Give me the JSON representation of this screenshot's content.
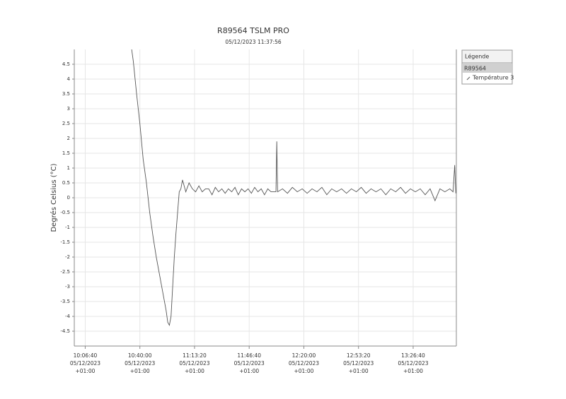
{
  "chart_data": {
    "type": "line",
    "title": "R89564 TSLM PRO",
    "subtitle": "05/12/2023 11:37:56",
    "y_label": "Degrés Celsius (°C)",
    "legend": {
      "title": "Légende",
      "group": "R89564",
      "position": "right"
    },
    "grid": true,
    "ylim": [
      -5,
      5
    ],
    "yticks": [
      -4.5,
      -4,
      -3.5,
      -3,
      -2.5,
      -2,
      -1.5,
      -1,
      -0.5,
      0,
      0.5,
      1,
      1.5,
      2,
      2.5,
      3,
      3.5,
      4,
      4.5
    ],
    "xlim": [
      "2023-12-05T10:00:00+01:00",
      "2023-12-05T13:53:00+01:00"
    ],
    "xticks": [
      {
        "value": "2023-12-05T10:06:40+01:00",
        "label": [
          "10:06:40",
          "05/12/2023",
          "+01:00"
        ]
      },
      {
        "value": "2023-12-05T10:40:00+01:00",
        "label": [
          "10:40:00",
          "05/12/2023",
          "+01:00"
        ]
      },
      {
        "value": "2023-12-05T11:13:20+01:00",
        "label": [
          "11:13:20",
          "05/12/2023",
          "+01:00"
        ]
      },
      {
        "value": "2023-12-05T11:46:40+01:00",
        "label": [
          "11:46:40",
          "05/12/2023",
          "+01:00"
        ]
      },
      {
        "value": "2023-12-05T12:20:00+01:00",
        "label": [
          "12:20:00",
          "05/12/2023",
          "+01:00"
        ]
      },
      {
        "value": "2023-12-05T12:53:20+01:00",
        "label": [
          "12:53:20",
          "05/12/2023",
          "+01:00"
        ]
      },
      {
        "value": "2023-12-05T13:26:40+01:00",
        "label": [
          "13:26:40",
          "05/12/2023",
          "+01:00"
        ]
      }
    ],
    "x": [
      "2023-12-05T10:35:00+01:00",
      "2023-12-05T10:36:00+01:00",
      "2023-12-05T10:38:00+01:00",
      "2023-12-05T10:40:00+01:00",
      "2023-12-05T10:42:00+01:00",
      "2023-12-05T10:44:00+01:00",
      "2023-12-05T10:46:00+01:00",
      "2023-12-05T10:48:00+01:00",
      "2023-12-05T10:50:00+01:00",
      "2023-12-05T10:52:00+01:00",
      "2023-12-05T10:54:00+01:00",
      "2023-12-05T10:56:00+01:00",
      "2023-12-05T10:57:00+01:00",
      "2023-12-05T10:58:00+01:00",
      "2023-12-05T10:59:00+01:00",
      "2023-12-05T11:00:00+01:00",
      "2023-12-05T11:01:00+01:00",
      "2023-12-05T11:02:00+01:00",
      "2023-12-05T11:03:00+01:00",
      "2023-12-05T11:04:00+01:00",
      "2023-12-05T11:05:00+01:00",
      "2023-12-05T11:06:00+01:00",
      "2023-12-05T11:08:00+01:00",
      "2023-12-05T11:10:00+01:00",
      "2023-12-05T11:12:00+01:00",
      "2023-12-05T11:14:00+01:00",
      "2023-12-05T11:16:00+01:00",
      "2023-12-05T11:18:00+01:00",
      "2023-12-05T11:20:00+01:00",
      "2023-12-05T11:22:00+01:00",
      "2023-12-05T11:24:00+01:00",
      "2023-12-05T11:26:00+01:00",
      "2023-12-05T11:28:00+01:00",
      "2023-12-05T11:30:00+01:00",
      "2023-12-05T11:32:00+01:00",
      "2023-12-05T11:34:00+01:00",
      "2023-12-05T11:36:00+01:00",
      "2023-12-05T11:38:00+01:00",
      "2023-12-05T11:40:00+01:00",
      "2023-12-05T11:42:00+01:00",
      "2023-12-05T11:44:00+01:00",
      "2023-12-05T11:46:00+01:00",
      "2023-12-05T11:48:00+01:00",
      "2023-12-05T11:50:00+01:00",
      "2023-12-05T11:52:00+01:00",
      "2023-12-05T11:54:00+01:00",
      "2023-12-05T11:56:00+01:00",
      "2023-12-05T11:58:00+01:00",
      "2023-12-05T12:00:00+01:00",
      "2023-12-05T12:03:00+01:00",
      "2023-12-05T12:03:30+01:00",
      "2023-12-05T12:04:00+01:00",
      "2023-12-05T12:07:00+01:00",
      "2023-12-05T12:10:00+01:00",
      "2023-12-05T12:13:00+01:00",
      "2023-12-05T12:16:00+01:00",
      "2023-12-05T12:19:00+01:00",
      "2023-12-05T12:22:00+01:00",
      "2023-12-05T12:25:00+01:00",
      "2023-12-05T12:28:00+01:00",
      "2023-12-05T12:31:00+01:00",
      "2023-12-05T12:34:00+01:00",
      "2023-12-05T12:37:00+01:00",
      "2023-12-05T12:40:00+01:00",
      "2023-12-05T12:43:00+01:00",
      "2023-12-05T12:46:00+01:00",
      "2023-12-05T12:49:00+01:00",
      "2023-12-05T12:52:00+01:00",
      "2023-12-05T12:55:00+01:00",
      "2023-12-05T12:58:00+01:00",
      "2023-12-05T13:01:00+01:00",
      "2023-12-05T13:04:00+01:00",
      "2023-12-05T13:07:00+01:00",
      "2023-12-05T13:10:00+01:00",
      "2023-12-05T13:13:00+01:00",
      "2023-12-05T13:16:00+01:00",
      "2023-12-05T13:19:00+01:00",
      "2023-12-05T13:22:00+01:00",
      "2023-12-05T13:25:00+01:00",
      "2023-12-05T13:28:00+01:00",
      "2023-12-05T13:31:00+01:00",
      "2023-12-05T13:34:00+01:00",
      "2023-12-05T13:37:00+01:00",
      "2023-12-05T13:40:00+01:00",
      "2023-12-05T13:43:00+01:00",
      "2023-12-05T13:46:00+01:00",
      "2023-12-05T13:49:00+01:00",
      "2023-12-05T13:51:00+01:00",
      "2023-12-05T13:52:00+01:00",
      "2023-12-05T13:52:40+01:00"
    ],
    "series": [
      {
        "name": "Température 3",
        "color": "#555555",
        "values": [
          5.0,
          4.6,
          3.5,
          2.5,
          1.3,
          0.5,
          -0.5,
          -1.3,
          -2.0,
          -2.6,
          -3.2,
          -3.8,
          -4.2,
          -4.3,
          -4.0,
          -3.0,
          -2.0,
          -1.2,
          -0.5,
          0.2,
          0.3,
          0.6,
          0.2,
          0.5,
          0.3,
          0.2,
          0.4,
          0.2,
          0.3,
          0.3,
          0.1,
          0.35,
          0.2,
          0.3,
          0.15,
          0.3,
          0.2,
          0.35,
          0.1,
          0.3,
          0.2,
          0.3,
          0.15,
          0.35,
          0.2,
          0.3,
          0.1,
          0.3,
          0.2,
          0.2,
          1.9,
          0.2,
          0.3,
          0.15,
          0.35,
          0.2,
          0.3,
          0.15,
          0.3,
          0.2,
          0.35,
          0.1,
          0.3,
          0.2,
          0.3,
          0.15,
          0.3,
          0.2,
          0.35,
          0.15,
          0.3,
          0.2,
          0.3,
          0.1,
          0.3,
          0.2,
          0.35,
          0.15,
          0.3,
          0.2,
          0.3,
          0.1,
          0.3,
          -0.1,
          0.3,
          0.2,
          0.3,
          0.2,
          1.1,
          0.15
        ]
      }
    ]
  }
}
